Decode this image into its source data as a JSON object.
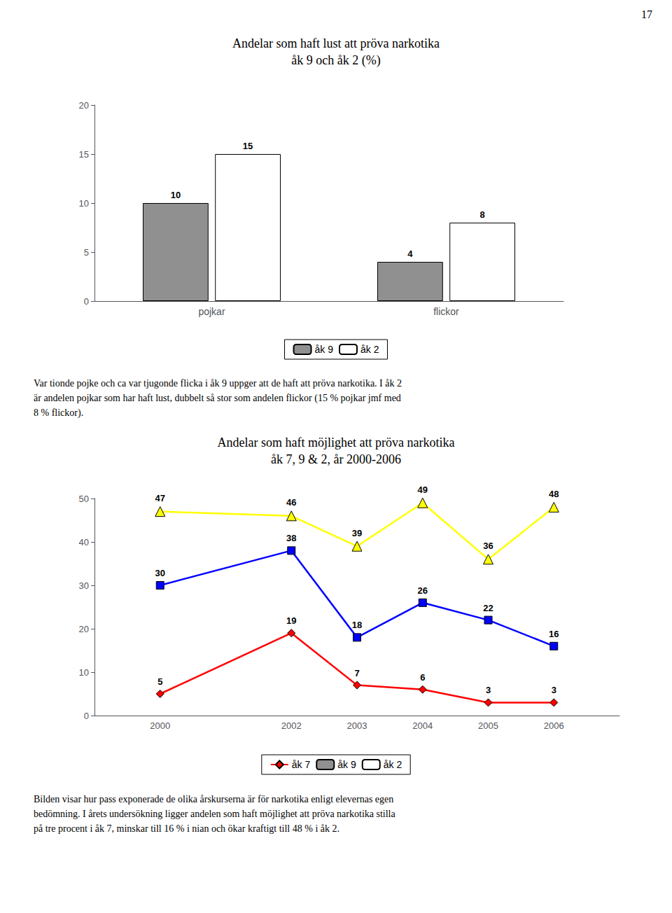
{
  "page_number": "17",
  "chart_data": [
    {
      "type": "bar",
      "title": "Andelar som haft lust att pröva narkotika",
      "subtitle": "åk 9 och åk 2 (%)",
      "categories": [
        "pojkar",
        "flickor"
      ],
      "series": [
        {
          "name": "åk 9",
          "color": "#909090",
          "values": [
            10,
            4
          ]
        },
        {
          "name": "åk 2",
          "color": "#ffffff",
          "values": [
            15,
            8
          ]
        }
      ],
      "ylim": [
        0,
        20
      ],
      "yticks": [
        0,
        5,
        10,
        15,
        20
      ],
      "grid": false,
      "legend": "bottom",
      "data_labels": true,
      "annotations": [
        "Var tionde pojke och ca var tjugonde flicka i åk 9 uppger att de haft att pröva narkotika. I åk 2",
        "är andelen pojkar som har haft lust, dubbelt så stor som andelen flickor (15 % pojkar jmf med",
        "8 % flickor)."
      ]
    },
    {
      "type": "line",
      "title": "Andelar som haft möjlighet att pröva narkotika",
      "subtitle": "åk 7, 9 & 2, år 2000-2006",
      "x": [
        2000,
        2002,
        2003,
        2004,
        2005,
        2006
      ],
      "series": [
        {
          "name": "åk 7",
          "color": "#ff0000",
          "marker": "diamond",
          "values": [
            5,
            19,
            7,
            6,
            3,
            3
          ]
        },
        {
          "name": "åk 9",
          "color": "#0000ff",
          "marker": "square",
          "values": [
            30,
            38,
            18,
            26,
            22,
            16
          ]
        },
        {
          "name": "åk 2",
          "color": "#ffff00",
          "marker": "triangle",
          "values": [
            47,
            46,
            39,
            49,
            36,
            48
          ]
        }
      ],
      "xlim": [
        1999,
        2007
      ],
      "xticks": [
        2000,
        2002,
        2003,
        2004,
        2005,
        2006
      ],
      "ylim": [
        0,
        50
      ],
      "yticks": [
        0,
        10,
        20,
        30,
        40,
        50
      ],
      "grid": false,
      "legend": "bottom",
      "data_labels": true,
      "annotations": [
        "Bilden visar hur pass exponerade de olika årskurserna är för narkotika enligt elevernas egen",
        "bedömning. I årets undersökning ligger andelen som haft möjlighet att pröva narkotika stilla",
        "på tre procent i åk 7, minskar till 16 % i nian och ökar kraftigt till 48 % i åk 2."
      ]
    }
  ]
}
